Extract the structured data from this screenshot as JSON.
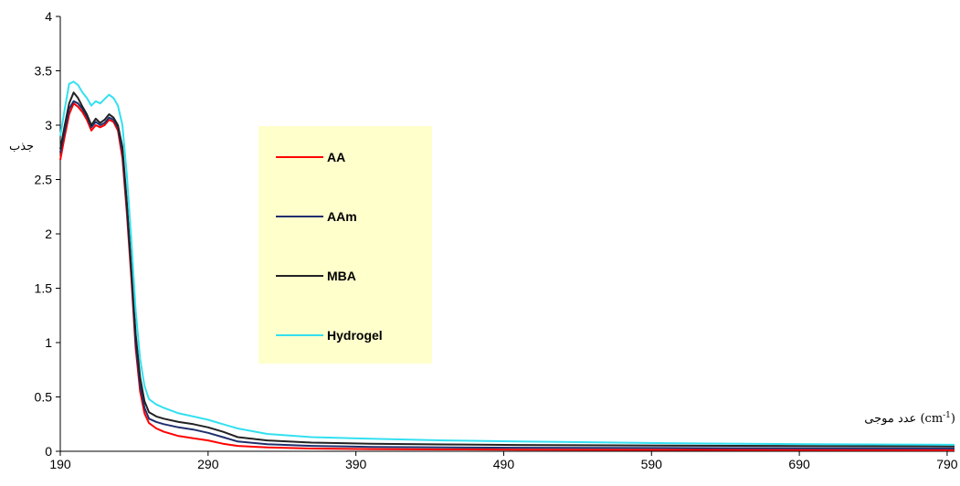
{
  "chart_data": {
    "type": "line",
    "title": "",
    "xlabel": "عدد موجی (cm-1)",
    "xlabel_parts": {
      "text": "عدد موجی (cm",
      "sup": "-1",
      "close": ")"
    },
    "ylabel": "جذب",
    "xlim": [
      190,
      795
    ],
    "ylim": [
      0,
      4
    ],
    "x_ticks": [
      "190",
      "290",
      "390",
      "490",
      "590",
      "690",
      "790"
    ],
    "y_ticks": [
      "0",
      "0.5",
      "1",
      "1.5",
      "2",
      "2.5",
      "3",
      "3.5",
      "4"
    ],
    "grid": false,
    "legend": {
      "placement": "upper-center-left",
      "background": "#ffffcc"
    },
    "series": [
      {
        "name": "AA",
        "color": "#ff0000",
        "points": [
          [
            190,
            2.68
          ],
          [
            193,
            2.9
          ],
          [
            196,
            3.1
          ],
          [
            199,
            3.2
          ],
          [
            202,
            3.17
          ],
          [
            205,
            3.12
          ],
          [
            208,
            3.05
          ],
          [
            211,
            2.95
          ],
          [
            214,
            3.0
          ],
          [
            217,
            2.98
          ],
          [
            220,
            3.0
          ],
          [
            223,
            3.05
          ],
          [
            226,
            3.03
          ],
          [
            229,
            2.95
          ],
          [
            232,
            2.7
          ],
          [
            235,
            2.2
          ],
          [
            238,
            1.6
          ],
          [
            241,
            0.95
          ],
          [
            244,
            0.55
          ],
          [
            247,
            0.35
          ],
          [
            250,
            0.26
          ],
          [
            255,
            0.21
          ],
          [
            260,
            0.18
          ],
          [
            270,
            0.14
          ],
          [
            280,
            0.12
          ],
          [
            290,
            0.1
          ],
          [
            300,
            0.07
          ],
          [
            310,
            0.05
          ],
          [
            330,
            0.035
          ],
          [
            360,
            0.025
          ],
          [
            400,
            0.02
          ],
          [
            450,
            0.017
          ],
          [
            500,
            0.015
          ],
          [
            600,
            0.013
          ],
          [
            700,
            0.012
          ],
          [
            795,
            0.01
          ]
        ]
      },
      {
        "name": "AAm",
        "color": "#1f2f6e",
        "points": [
          [
            190,
            2.75
          ],
          [
            193,
            2.95
          ],
          [
            196,
            3.15
          ],
          [
            199,
            3.22
          ],
          [
            202,
            3.2
          ],
          [
            205,
            3.15
          ],
          [
            208,
            3.08
          ],
          [
            211,
            2.98
          ],
          [
            214,
            3.03
          ],
          [
            217,
            3.0
          ],
          [
            220,
            3.02
          ],
          [
            223,
            3.07
          ],
          [
            226,
            3.05
          ],
          [
            229,
            2.98
          ],
          [
            232,
            2.75
          ],
          [
            235,
            2.25
          ],
          [
            238,
            1.65
          ],
          [
            241,
            1.0
          ],
          [
            244,
            0.6
          ],
          [
            247,
            0.4
          ],
          [
            250,
            0.3
          ],
          [
            255,
            0.27
          ],
          [
            260,
            0.25
          ],
          [
            270,
            0.22
          ],
          [
            280,
            0.2
          ],
          [
            290,
            0.17
          ],
          [
            300,
            0.13
          ],
          [
            310,
            0.09
          ],
          [
            330,
            0.065
          ],
          [
            360,
            0.05
          ],
          [
            400,
            0.04
          ],
          [
            450,
            0.035
          ],
          [
            500,
            0.033
          ],
          [
            600,
            0.03
          ],
          [
            700,
            0.028
          ],
          [
            795,
            0.026
          ]
        ]
      },
      {
        "name": "MBA",
        "color": "#222222",
        "points": [
          [
            190,
            2.78
          ],
          [
            193,
            3.0
          ],
          [
            196,
            3.2
          ],
          [
            199,
            3.3
          ],
          [
            202,
            3.25
          ],
          [
            205,
            3.17
          ],
          [
            208,
            3.1
          ],
          [
            211,
            3.0
          ],
          [
            214,
            3.06
          ],
          [
            217,
            3.02
          ],
          [
            220,
            3.05
          ],
          [
            223,
            3.1
          ],
          [
            226,
            3.07
          ],
          [
            229,
            3.0
          ],
          [
            232,
            2.8
          ],
          [
            235,
            2.3
          ],
          [
            238,
            1.7
          ],
          [
            241,
            1.08
          ],
          [
            244,
            0.68
          ],
          [
            247,
            0.46
          ],
          [
            250,
            0.36
          ],
          [
            255,
            0.32
          ],
          [
            260,
            0.3
          ],
          [
            270,
            0.27
          ],
          [
            280,
            0.25
          ],
          [
            290,
            0.22
          ],
          [
            300,
            0.18
          ],
          [
            310,
            0.13
          ],
          [
            330,
            0.1
          ],
          [
            360,
            0.08
          ],
          [
            400,
            0.07
          ],
          [
            450,
            0.063
          ],
          [
            500,
            0.058
          ],
          [
            600,
            0.052
          ],
          [
            700,
            0.048
          ],
          [
            795,
            0.045
          ]
        ]
      },
      {
        "name": "Hydrogel",
        "color": "#33e0f0",
        "points": [
          [
            190,
            2.9
          ],
          [
            193,
            3.15
          ],
          [
            196,
            3.38
          ],
          [
            199,
            3.4
          ],
          [
            202,
            3.37
          ],
          [
            205,
            3.3
          ],
          [
            208,
            3.25
          ],
          [
            211,
            3.18
          ],
          [
            214,
            3.22
          ],
          [
            217,
            3.2
          ],
          [
            220,
            3.24
          ],
          [
            223,
            3.28
          ],
          [
            226,
            3.25
          ],
          [
            229,
            3.18
          ],
          [
            232,
            3.0
          ],
          [
            235,
            2.55
          ],
          [
            238,
            1.95
          ],
          [
            241,
            1.3
          ],
          [
            244,
            0.85
          ],
          [
            247,
            0.6
          ],
          [
            250,
            0.48
          ],
          [
            255,
            0.43
          ],
          [
            260,
            0.4
          ],
          [
            270,
            0.35
          ],
          [
            280,
            0.32
          ],
          [
            290,
            0.29
          ],
          [
            300,
            0.25
          ],
          [
            310,
            0.21
          ],
          [
            330,
            0.16
          ],
          [
            360,
            0.13
          ],
          [
            400,
            0.115
          ],
          [
            450,
            0.1
          ],
          [
            500,
            0.09
          ],
          [
            600,
            0.075
          ],
          [
            700,
            0.065
          ],
          [
            795,
            0.06
          ]
        ]
      }
    ]
  }
}
